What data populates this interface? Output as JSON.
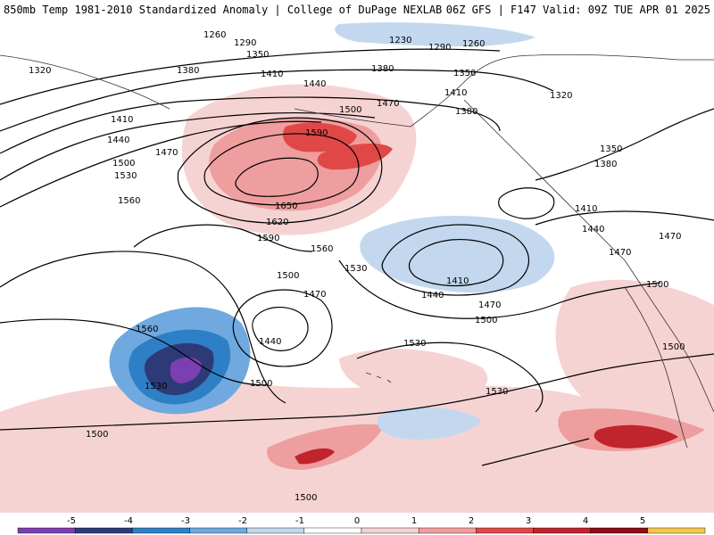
{
  "header": {
    "title_left": "850mb Temp 1981-2010 Standardized Anomaly | College of DuPage NEXLAB",
    "title_right": "06Z GFS | F147 Valid: 09Z TUE APR 01 2025"
  },
  "contour_labels": [
    "1260",
    "1290",
    "1230",
    "1290",
    "1260",
    "1320",
    "1350",
    "1380",
    "1410",
    "1440",
    "1380",
    "1350",
    "1320",
    "1470",
    "1410",
    "1410",
    "1380",
    "1500",
    "1590",
    "1440",
    "1470",
    "1500",
    "1530",
    "1560",
    "1650",
    "1620",
    "1590",
    "1560",
    "1530",
    "1410",
    "1440",
    "1470",
    "1500",
    "1350",
    "1380",
    "1410",
    "1440",
    "1470",
    "1470",
    "1500",
    "1500",
    "1560",
    "1440",
    "1470",
    "1500",
    "1530",
    "1530",
    "1530",
    "1500",
    "1500",
    "1500"
  ],
  "colors": {
    "neg5": "#7a3fb0",
    "neg4": "#2e3a78",
    "neg3": "#2f7fc6",
    "neg2": "#6fa9df",
    "neg1": "#c3d8ef",
    "pos1": "#f6d3d3",
    "pos2": "#ee9e9e",
    "pos3": "#e04848",
    "pos4": "#c0242c",
    "pos5": "#8a0d17",
    "pos6": "#f5c84a"
  },
  "colorbar": {
    "ticks": [
      "-5",
      "-4",
      "-3",
      "-2",
      "-1",
      "0",
      "1",
      "2",
      "3",
      "4",
      "5"
    ]
  }
}
